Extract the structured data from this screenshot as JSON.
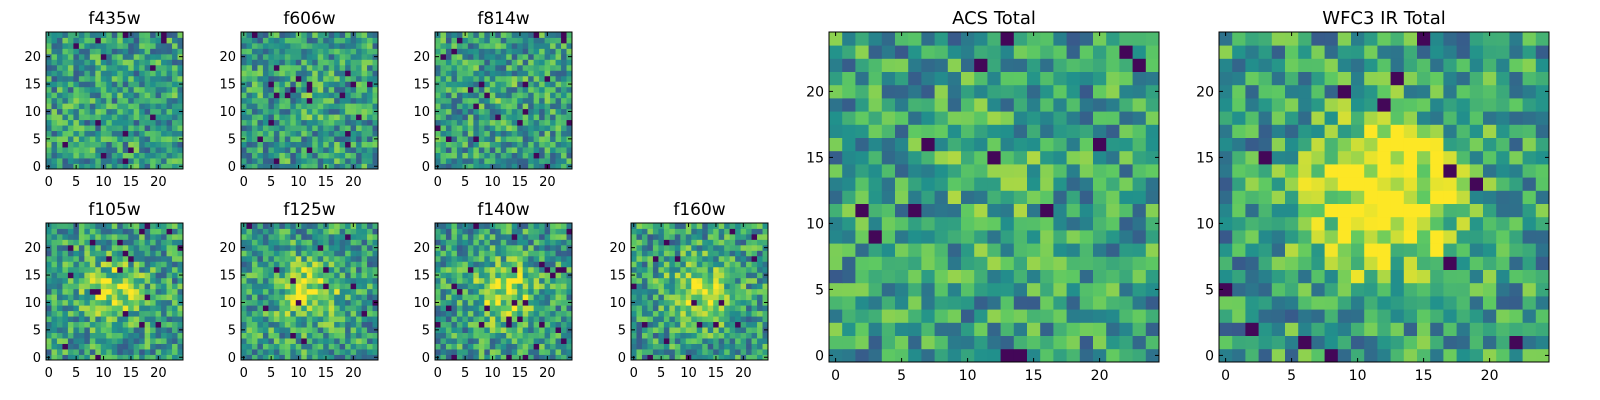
{
  "figure": {
    "description_type": "grid of pixel heatmaps (image cutouts per filter)",
    "colormap": [
      "#440154",
      "#3b528b",
      "#21918c",
      "#5ec962",
      "#fde725"
    ]
  },
  "chart_data": [
    {
      "type": "heatmap",
      "id": "f435w",
      "title": "f435w",
      "rows": 25,
      "cols": 25,
      "xlim": [
        -0.5,
        24.5
      ],
      "ylim": [
        -0.5,
        24.5
      ],
      "xticks": [
        0,
        5,
        10,
        15,
        20
      ],
      "yticks": [
        0,
        5,
        10,
        15,
        20
      ],
      "xtick_labels": [
        "0",
        "5",
        "10",
        "15",
        "20"
      ],
      "ytick_labels": [
        "0",
        "5",
        "10",
        "15",
        "20"
      ],
      "values_desc": "mostly noise, green-yellow, scattered dark pixels",
      "seed": 11,
      "center_peak": 0.0
    },
    {
      "type": "heatmap",
      "id": "f606w",
      "title": "f606w",
      "rows": 25,
      "cols": 25,
      "xlim": [
        -0.5,
        24.5
      ],
      "ylim": [
        -0.5,
        24.5
      ],
      "xticks": [
        0,
        5,
        10,
        15,
        20
      ],
      "yticks": [
        0,
        5,
        10,
        15,
        20
      ],
      "xtick_labels": [
        "0",
        "5",
        "10",
        "15",
        "20"
      ],
      "ytick_labels": [
        "0",
        "5",
        "10",
        "15",
        "20"
      ],
      "values_desc": "noise",
      "seed": 23,
      "center_peak": 0.05
    },
    {
      "type": "heatmap",
      "id": "f814w",
      "title": "f814w",
      "rows": 25,
      "cols": 25,
      "xlim": [
        -0.5,
        24.5
      ],
      "ylim": [
        -0.5,
        24.5
      ],
      "xticks": [
        0,
        5,
        10,
        15,
        20
      ],
      "yticks": [
        0,
        5,
        10,
        15,
        20
      ],
      "xtick_labels": [
        "0",
        "5",
        "10",
        "15",
        "20"
      ],
      "ytick_labels": [
        "0",
        "5",
        "10",
        "15",
        "20"
      ],
      "values_desc": "noise",
      "seed": 37,
      "center_peak": 0.05
    },
    {
      "type": "heatmap",
      "id": "f105w",
      "title": "f105w",
      "rows": 25,
      "cols": 25,
      "xlim": [
        -0.5,
        24.5
      ],
      "ylim": [
        -0.5,
        24.5
      ],
      "xticks": [
        0,
        5,
        10,
        15,
        20
      ],
      "yticks": [
        0,
        5,
        10,
        15,
        20
      ],
      "xtick_labels": [
        "0",
        "5",
        "10",
        "15",
        "20"
      ],
      "ytick_labels": [
        "0",
        "5",
        "10",
        "15",
        "20"
      ],
      "values_desc": "faint central source",
      "seed": 41,
      "center_peak": 0.3
    },
    {
      "type": "heatmap",
      "id": "f125w",
      "title": "f125w",
      "rows": 25,
      "cols": 25,
      "xlim": [
        -0.5,
        24.5
      ],
      "ylim": [
        -0.5,
        24.5
      ],
      "xticks": [
        0,
        5,
        10,
        15,
        20
      ],
      "yticks": [
        0,
        5,
        10,
        15,
        20
      ],
      "xtick_labels": [
        "0",
        "5",
        "10",
        "15",
        "20"
      ],
      "ytick_labels": [
        "0",
        "5",
        "10",
        "15",
        "20"
      ],
      "values_desc": "central source",
      "seed": 53,
      "center_peak": 0.35
    },
    {
      "type": "heatmap",
      "id": "f140w",
      "title": "f140w",
      "rows": 25,
      "cols": 25,
      "xlim": [
        -0.5,
        24.5
      ],
      "ylim": [
        -0.5,
        24.5
      ],
      "xticks": [
        0,
        5,
        10,
        15,
        20
      ],
      "yticks": [
        0,
        5,
        10,
        15,
        20
      ],
      "xtick_labels": [
        "0",
        "5",
        "10",
        "15",
        "20"
      ],
      "ytick_labels": [
        "0",
        "5",
        "10",
        "15",
        "20"
      ],
      "values_desc": "central source",
      "seed": 67,
      "center_peak": 0.35
    },
    {
      "type": "heatmap",
      "id": "f160w",
      "title": "f160w",
      "rows": 25,
      "cols": 25,
      "xlim": [
        -0.5,
        24.5
      ],
      "ylim": [
        -0.5,
        24.5
      ],
      "xticks": [
        0,
        5,
        10,
        15,
        20
      ],
      "yticks": [
        0,
        5,
        10,
        15,
        20
      ],
      "xtick_labels": [
        "0",
        "5",
        "10",
        "15",
        "20"
      ],
      "ytick_labels": [
        "0",
        "5",
        "10",
        "15",
        "20"
      ],
      "values_desc": "central source",
      "seed": 79,
      "center_peak": 0.35
    },
    {
      "type": "heatmap",
      "id": "acs_total",
      "title": "ACS Total",
      "rows": 25,
      "cols": 25,
      "xlim": [
        -0.5,
        24.5
      ],
      "ylim": [
        -0.5,
        24.5
      ],
      "xticks": [
        0,
        5,
        10,
        15,
        20
      ],
      "yticks": [
        0,
        5,
        10,
        15,
        20
      ],
      "xtick_labels": [
        "0",
        "5",
        "10",
        "15",
        "20"
      ],
      "ytick_labels": [
        "0",
        "5",
        "10",
        "15",
        "20"
      ],
      "values_desc": "stacked ACS noise, green-yellow",
      "seed": 97,
      "center_peak": 0.1
    },
    {
      "type": "heatmap",
      "id": "wfc3_ir_total",
      "title": "WFC3 IR Total",
      "rows": 25,
      "cols": 25,
      "xlim": [
        -0.5,
        24.5
      ],
      "ylim": [
        -0.5,
        24.5
      ],
      "xticks": [
        0,
        5,
        10,
        15,
        20
      ],
      "yticks": [
        0,
        5,
        10,
        15,
        20
      ],
      "xtick_labels": [
        "0",
        "5",
        "10",
        "15",
        "20"
      ],
      "ytick_labels": [
        "0",
        "5",
        "10",
        "15",
        "20"
      ],
      "values_desc": "stacked IR with bright central source near (12,12)",
      "seed": 113,
      "center_peak": 0.6
    }
  ]
}
